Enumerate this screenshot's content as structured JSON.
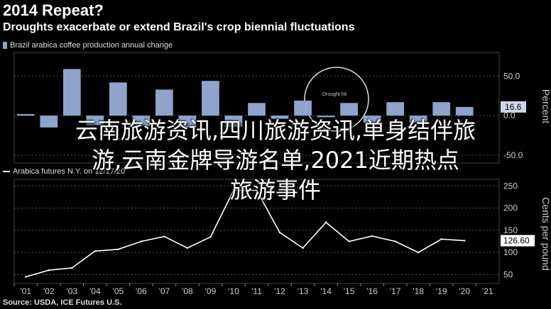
{
  "header": {
    "title": "2014 Repeat?",
    "subtitle": "Droughts exacerbate or extend Brazil's crop biennial fluctuations",
    "source": "Source: USDA, ICE Futures U.S."
  },
  "overlay": {
    "line1": "云南旅游资讯,四川旅游资讯,单身结伴旅",
    "line2": "游,云南金牌导游名单,2021近期热点",
    "line3": "旅游事件"
  },
  "colors": {
    "bar": "#8fa3cc",
    "line": "#ffffff",
    "grid": "#555555",
    "background": "#000000"
  },
  "chart_data": [
    {
      "type": "bar",
      "legend": "Brazil arabica coffee production annual change",
      "categories": [
        "'01",
        "'02",
        "'03",
        "'04",
        "'05",
        "'06",
        "'07",
        "'08",
        "'09",
        "'10",
        "'11",
        "'12",
        "'13",
        "'14",
        "'15",
        "'16",
        "'17",
        "'18",
        "'19",
        "'20",
        "'21"
      ],
      "values": [
        2,
        -15,
        59,
        -12,
        42,
        -13,
        33,
        -15,
        44,
        -14,
        16,
        -4,
        19,
        -2,
        16,
        -9,
        17,
        -9,
        17,
        11,
        null
      ],
      "ylabel": "Percent",
      "yticks": [
        50,
        0,
        -50
      ],
      "ylim": [
        -60,
        80
      ],
      "callout_value": "16.6",
      "annotation": "Drought hit"
    },
    {
      "type": "line",
      "legend": "Arabica futures N.Y. on 12/17/20",
      "categories": [
        "'01",
        "'02",
        "'03",
        "'04",
        "'05",
        "'06",
        "'07",
        "'08",
        "'09",
        "'10",
        "'11",
        "'12",
        "'13",
        "'14",
        "'15",
        "'16",
        "'17",
        "'18",
        "'19",
        "'20",
        "'21"
      ],
      "values": [
        45,
        60,
        65,
        103,
        107,
        125,
        136,
        110,
        135,
        240,
        240,
        145,
        110,
        168,
        125,
        137,
        125,
        100,
        130,
        126.6,
        null
      ],
      "ylabel": "Cents per pound",
      "yticks": [
        250,
        200,
        150,
        100,
        50
      ],
      "ylim": [
        30,
        265
      ],
      "callout_value": "126.60"
    }
  ]
}
